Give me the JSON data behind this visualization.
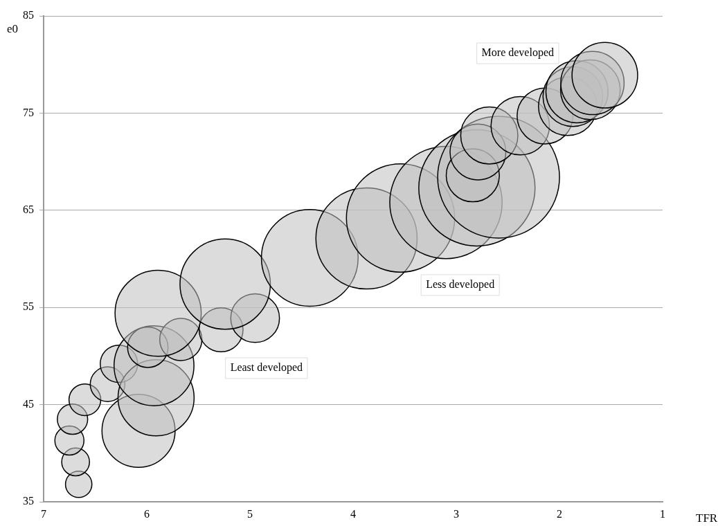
{
  "chart_data": {
    "type": "bubble",
    "xlabel": "TFR",
    "ylabel": "e0",
    "x": [
      6.66,
      6.69,
      6.75,
      6.72,
      6.6,
      6.38,
      6.27,
      6.08,
      5.91,
      5.93,
      5.99,
      5.67,
      5.89,
      5.28,
      4.95,
      5.24,
      4.42,
      3.87,
      3.54,
      3.1,
      2.8,
      2.59,
      2.84,
      2.79,
      2.68,
      2.38,
      2.14,
      1.92,
      1.87,
      1.83,
      1.7,
      1.68,
      1.56
    ],
    "series": [
      {
        "color": "#bfbfbf",
        "values": [
          36.8,
          39.1,
          41.3,
          43.5,
          45.5,
          47.1,
          49.2,
          42.3,
          45.7,
          49.0,
          50.9,
          51.7,
          54.4,
          52.7,
          53.9,
          57.4,
          60.1,
          62.1,
          64.2,
          65.8,
          67.3,
          68.4,
          68.6,
          71.0,
          72.7,
          73.7,
          74.7,
          75.7,
          76.7,
          77.2,
          77.4,
          78.1,
          78.9
        ],
        "sizes": [
          0.047,
          0.052,
          0.057,
          0.062,
          0.068,
          0.081,
          0.094,
          0.36,
          0.39,
          0.43,
          0.11,
          0.12,
          0.5,
          0.13,
          0.16,
          0.55,
          0.63,
          0.69,
          0.79,
          0.85,
          0.91,
          1,
          0.19,
          0.21,
          0.22,
          0.23,
          0.21,
          0.23,
          0.24,
          0.26,
          0.24,
          0.27,
          0.29
        ]
      }
    ],
    "xlim": [
      7,
      1
    ],
    "xticks": [
      7,
      6,
      5,
      4,
      3,
      2,
      1
    ],
    "ylim": [
      35,
      85
    ],
    "yticks": [
      35,
      45,
      55,
      65,
      75,
      85
    ],
    "grid": "y",
    "annotations": [
      "More developed",
      "Less developed",
      "Least developed"
    ]
  }
}
